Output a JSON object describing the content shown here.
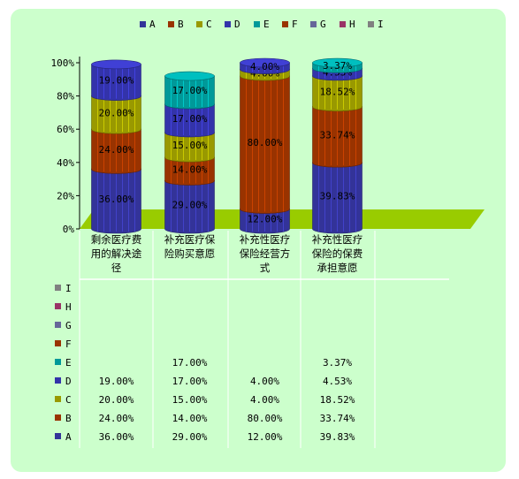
{
  "chart_data": {
    "type": "bar",
    "stacked": "percent",
    "categories": [
      "剩余医疗费用的解决途径",
      "补充医疗保险购买意愿",
      "补充性医疗保险经营方式",
      "补充性医疗保险的保费承担意愿"
    ],
    "category_lines": [
      [
        "剩余医疗费",
        "用的解决途",
        "径"
      ],
      [
        "补充医疗保",
        "险购买意愿"
      ],
      [
        "补充性医疗",
        "保险经营方",
        "式"
      ],
      [
        "补充性医疗",
        "保险的保费",
        "承担意愿"
      ]
    ],
    "series": [
      {
        "name": "A",
        "color": "#333399",
        "values": [
          36.0,
          29.0,
          12.0,
          39.83
        ],
        "labels": [
          "36.00%",
          "29.00%",
          "12.00%",
          "39.83%"
        ]
      },
      {
        "name": "B",
        "color": "#993300",
        "values": [
          24.0,
          14.0,
          80.0,
          33.74
        ],
        "labels": [
          "24.00%",
          "14.00%",
          "80.00%",
          "33.74%"
        ]
      },
      {
        "name": "C",
        "color": "#999900",
        "values": [
          20.0,
          15.0,
          4.0,
          18.52
        ],
        "labels": [
          "20.00%",
          "15.00%",
          "4.00%",
          "18.52%"
        ]
      },
      {
        "name": "D",
        "color": "#3333aa",
        "values": [
          19.0,
          17.0,
          4.0,
          4.53
        ],
        "labels": [
          "19.00%",
          "17.00%",
          "4.00%",
          "4.53%"
        ]
      },
      {
        "name": "E",
        "color": "#009999",
        "values": [
          0,
          17.0,
          0,
          3.37
        ],
        "labels": [
          "",
          "17.00%",
          "",
          "3.37%"
        ]
      },
      {
        "name": "F",
        "color": "#993300",
        "values": [
          0,
          0,
          0,
          0
        ],
        "labels": [
          "",
          "",
          "",
          ""
        ]
      },
      {
        "name": "G",
        "color": "#666699",
        "values": [
          0,
          0,
          0,
          0
        ],
        "labels": [
          "",
          "",
          "",
          ""
        ]
      },
      {
        "name": "H",
        "color": "#993366",
        "values": [
          0,
          0,
          0,
          0
        ],
        "labels": [
          "",
          "",
          "",
          ""
        ]
      },
      {
        "name": "I",
        "color": "#808080",
        "values": [
          0,
          0,
          0,
          0
        ],
        "labels": [
          "",
          "",
          "",
          ""
        ]
      }
    ],
    "yticks": [
      "0%",
      "20%",
      "40%",
      "60%",
      "80%",
      "100%"
    ],
    "ylim": [
      0,
      100
    ],
    "legend": "top",
    "data_table": true,
    "floor_color": "#99cc00",
    "background": "#ccffcc"
  }
}
